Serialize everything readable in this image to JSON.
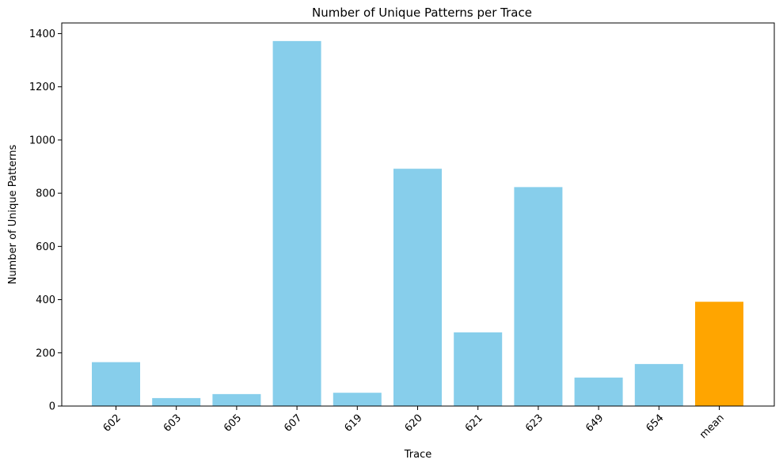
{
  "chart_data": {
    "type": "bar",
    "title": "Number of Unique Patterns per Trace",
    "xlabel": "Trace",
    "ylabel": "Number of Unique Patterns",
    "categories": [
      "602",
      "603",
      "605",
      "607",
      "619",
      "620",
      "621",
      "623",
      "649",
      "654",
      "mean"
    ],
    "values": [
      165,
      30,
      45,
      1372,
      50,
      892,
      277,
      823,
      107,
      158,
      392
    ],
    "bar_colors": [
      "#87CEEB",
      "#87CEEB",
      "#87CEEB",
      "#87CEEB",
      "#87CEEB",
      "#87CEEB",
      "#87CEEB",
      "#87CEEB",
      "#87CEEB",
      "#87CEEB",
      "#FFA500"
    ],
    "ylim": [
      0,
      1440
    ],
    "yticks": [
      0,
      200,
      400,
      600,
      800,
      1000,
      1200,
      1400
    ],
    "grid": false,
    "legend": null
  }
}
